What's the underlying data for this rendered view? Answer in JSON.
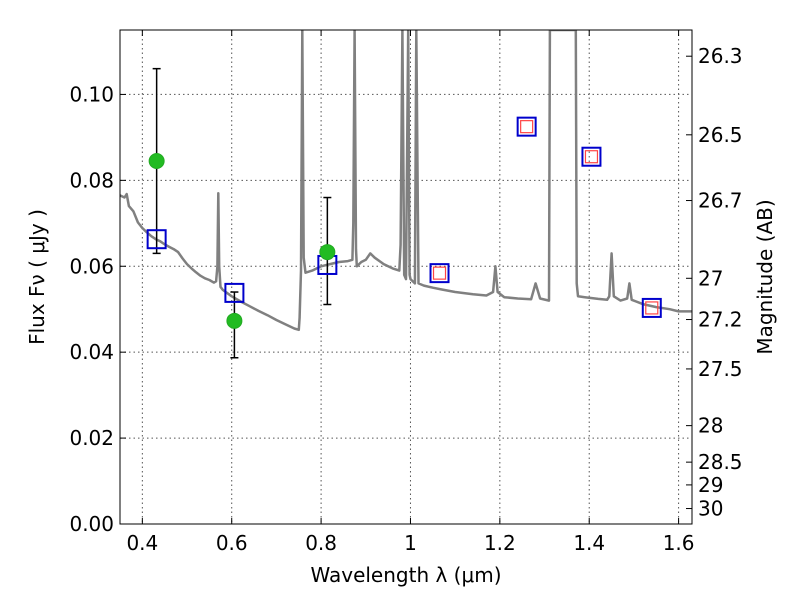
{
  "chart_data": {
    "type": "scatter",
    "xlabel": "Wavelength  λ (μm)",
    "ylabel": "Flux  Fν  ( μJy )",
    "ylabel_right": "Magnitude (AB)",
    "xlim": [
      0.35,
      1.63
    ],
    "ylim": [
      0.0,
      0.115
    ],
    "grid": true,
    "x_ticks": [
      {
        "value": 0.4,
        "label": "0.4"
      },
      {
        "value": 0.6,
        "label": "0.6"
      },
      {
        "value": 0.8,
        "label": "0.8"
      },
      {
        "value": 1.0,
        "label": "1"
      },
      {
        "value": 1.2,
        "label": "1.2"
      },
      {
        "value": 1.4,
        "label": "1.4"
      },
      {
        "value": 1.6,
        "label": "1.6"
      }
    ],
    "y_ticks": [
      {
        "value": 0.0,
        "label": "0.00"
      },
      {
        "value": 0.02,
        "label": "0.02"
      },
      {
        "value": 0.04,
        "label": "0.04"
      },
      {
        "value": 0.06,
        "label": "0.06"
      },
      {
        "value": 0.08,
        "label": "0.08"
      },
      {
        "value": 0.1,
        "label": "0.10"
      }
    ],
    "right_ticks": [
      {
        "label": "26.3",
        "flux": 0.1089
      },
      {
        "label": "26.5",
        "flux": 0.0906
      },
      {
        "label": "26.7",
        "flux": 0.0753
      },
      {
        "label": "27",
        "flux": 0.0572
      },
      {
        "label": "27.2",
        "flux": 0.0476
      },
      {
        "label": "27.5",
        "flux": 0.0361
      },
      {
        "label": "28",
        "flux": 0.0229
      },
      {
        "label": "28.5",
        "flux": 0.0144
      },
      {
        "label": "29",
        "flux": 0.0091
      },
      {
        "label": "30",
        "flux": 0.0036
      }
    ],
    "series": [
      {
        "kind": "model_spectrum",
        "color": "#808080",
        "points": [
          [
            0.35,
            0.0765
          ],
          [
            0.36,
            0.076
          ],
          [
            0.365,
            0.0768
          ],
          [
            0.37,
            0.074
          ],
          [
            0.38,
            0.0728
          ],
          [
            0.39,
            0.0702
          ],
          [
            0.4,
            0.0689
          ],
          [
            0.41,
            0.0679
          ],
          [
            0.42,
            0.067
          ],
          [
            0.43,
            0.0663
          ],
          [
            0.44,
            0.0658
          ],
          [
            0.45,
            0.0651
          ],
          [
            0.46,
            0.0645
          ],
          [
            0.47,
            0.064
          ],
          [
            0.48,
            0.0633
          ],
          [
            0.49,
            0.0618
          ],
          [
            0.5,
            0.0605
          ],
          [
            0.51,
            0.0595
          ],
          [
            0.52,
            0.0586
          ],
          [
            0.53,
            0.0578
          ],
          [
            0.54,
            0.0572
          ],
          [
            0.55,
            0.0568
          ],
          [
            0.56,
            0.0562
          ],
          [
            0.565,
            0.0565
          ],
          [
            0.568,
            0.06
          ],
          [
            0.57,
            0.077
          ],
          [
            0.572,
            0.06
          ],
          [
            0.575,
            0.0552
          ],
          [
            0.58,
            0.0545
          ],
          [
            0.6,
            0.053
          ],
          [
            0.62,
            0.0518
          ],
          [
            0.64,
            0.0507
          ],
          [
            0.66,
            0.0496
          ],
          [
            0.68,
            0.0486
          ],
          [
            0.7,
            0.0475
          ],
          [
            0.72,
            0.0465
          ],
          [
            0.74,
            0.0455
          ],
          [
            0.75,
            0.0452
          ],
          [
            0.752,
            0.048
          ],
          [
            0.755,
            0.059
          ],
          [
            0.758,
            0.115
          ],
          [
            0.761,
            0.062
          ],
          [
            0.765,
            0.0585
          ],
          [
            0.78,
            0.059
          ],
          [
            0.8,
            0.06
          ],
          [
            0.82,
            0.0605
          ],
          [
            0.84,
            0.061
          ],
          [
            0.86,
            0.0612
          ],
          [
            0.87,
            0.0615
          ],
          [
            0.872,
            0.07
          ],
          [
            0.875,
            0.115
          ],
          [
            0.878,
            0.064
          ],
          [
            0.88,
            0.06
          ],
          [
            0.89,
            0.061
          ],
          [
            0.9,
            0.0615
          ],
          [
            0.91,
            0.063
          ],
          [
            0.92,
            0.062
          ],
          [
            0.94,
            0.0605
          ],
          [
            0.96,
            0.0595
          ],
          [
            0.975,
            0.059
          ],
          [
            0.978,
            0.065
          ],
          [
            0.982,
            0.115
          ],
          [
            0.986,
            0.058
          ],
          [
            0.99,
            0.057
          ],
          [
            0.995,
            0.115
          ],
          [
            0.998,
            0.058
          ],
          [
            1.0,
            0.057
          ],
          [
            1.01,
            0.056
          ],
          [
            1.013,
            0.115
          ],
          [
            1.018,
            0.056
          ],
          [
            1.03,
            0.0555
          ],
          [
            1.05,
            0.055
          ],
          [
            1.07,
            0.0546
          ],
          [
            1.1,
            0.054
          ],
          [
            1.14,
            0.0535
          ],
          [
            1.17,
            0.0532
          ],
          [
            1.185,
            0.054
          ],
          [
            1.19,
            0.06
          ],
          [
            1.195,
            0.054
          ],
          [
            1.21,
            0.0528
          ],
          [
            1.24,
            0.0525
          ],
          [
            1.27,
            0.0523
          ],
          [
            1.28,
            0.056
          ],
          [
            1.29,
            0.0525
          ],
          [
            1.31,
            0.052
          ],
          [
            1.312,
            0.115
          ],
          [
            1.37,
            0.115
          ],
          [
            1.372,
            0.056
          ],
          [
            1.375,
            0.053
          ],
          [
            1.39,
            0.0528
          ],
          [
            1.42,
            0.0524
          ],
          [
            1.44,
            0.0522
          ],
          [
            1.445,
            0.053
          ],
          [
            1.45,
            0.063
          ],
          [
            1.455,
            0.053
          ],
          [
            1.47,
            0.052
          ],
          [
            1.485,
            0.0525
          ],
          [
            1.49,
            0.056
          ],
          [
            1.495,
            0.0522
          ],
          [
            1.52,
            0.0512
          ],
          [
            1.55,
            0.0505
          ],
          [
            1.58,
            0.05
          ],
          [
            1.6,
            0.0495
          ],
          [
            1.63,
            0.0495
          ]
        ]
      },
      {
        "kind": "observed_points",
        "color": "#22bb22",
        "points": [
          {
            "x": 0.432,
            "y": 0.0845,
            "err_low": 0.063,
            "err_high": 0.106
          },
          {
            "x": 0.606,
            "y": 0.0473,
            "err_low": 0.0387,
            "err_high": 0.054
          },
          {
            "x": 0.814,
            "y": 0.0633,
            "err_low": 0.0511,
            "err_high": 0.076
          }
        ]
      },
      {
        "kind": "model_photometry",
        "color": "#0000cc",
        "points": [
          {
            "x": 0.432,
            "y": 0.0663
          },
          {
            "x": 0.606,
            "y": 0.0538
          },
          {
            "x": 0.814,
            "y": 0.0603
          },
          {
            "x": 1.065,
            "y": 0.0584
          },
          {
            "x": 1.26,
            "y": 0.0925
          },
          {
            "x": 1.405,
            "y": 0.0855
          },
          {
            "x": 1.54,
            "y": 0.0503
          }
        ]
      },
      {
        "kind": "ir_points",
        "color": "#ff4444",
        "points": [
          {
            "x": 1.065,
            "y": 0.0584
          },
          {
            "x": 1.26,
            "y": 0.0925
          },
          {
            "x": 1.405,
            "y": 0.0855
          },
          {
            "x": 1.54,
            "y": 0.0503
          }
        ]
      }
    ]
  }
}
